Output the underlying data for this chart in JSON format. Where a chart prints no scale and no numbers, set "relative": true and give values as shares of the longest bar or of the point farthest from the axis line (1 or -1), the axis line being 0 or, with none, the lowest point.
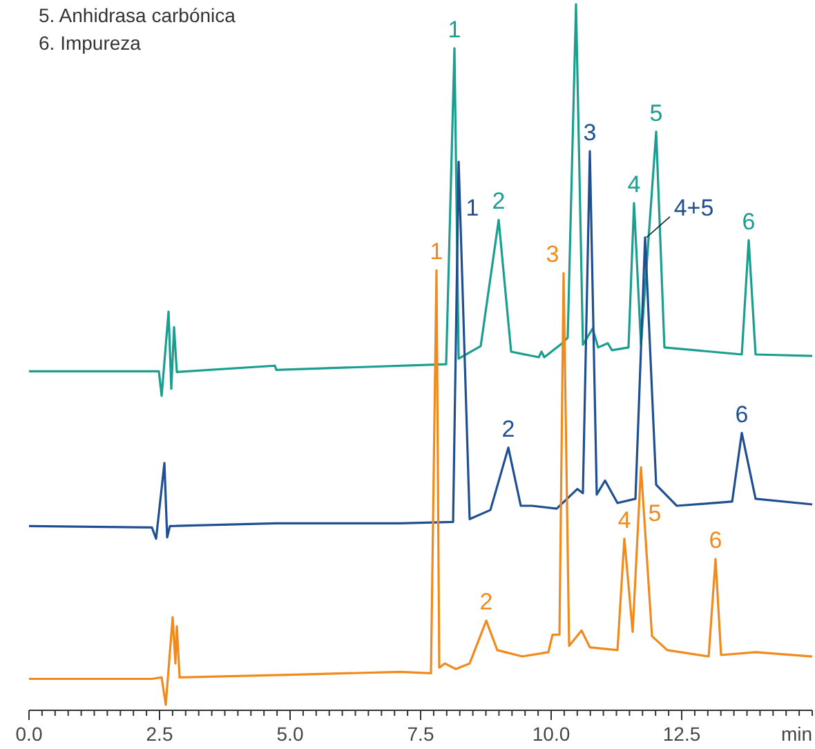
{
  "chart_data": {
    "type": "line",
    "relative": true,
    "xlabel": "min",
    "xlim": [
      0,
      15
    ],
    "grid": false,
    "legend": false,
    "tick_labels": "x",
    "marker": "none",
    "line_style": "solid",
    "xticks": [
      {
        "value": 0,
        "label": "0.0"
      },
      {
        "value": 0.25,
        "label": null
      },
      {
        "value": 0.5,
        "label": null
      },
      {
        "value": 0.75,
        "label": null
      },
      {
        "value": 1,
        "label": null
      },
      {
        "value": 1.25,
        "label": null
      },
      {
        "value": 1.5,
        "label": null
      },
      {
        "value": 1.75,
        "label": null
      },
      {
        "value": 2,
        "label": null
      },
      {
        "value": 2.25,
        "label": null
      },
      {
        "value": 2.5,
        "label": "2.5"
      },
      {
        "value": 2.75,
        "label": null
      },
      {
        "value": 3,
        "label": null
      },
      {
        "value": 3.25,
        "label": null
      },
      {
        "value": 3.5,
        "label": null
      },
      {
        "value": 3.75,
        "label": null
      },
      {
        "value": 4,
        "label": null
      },
      {
        "value": 4.25,
        "label": null
      },
      {
        "value": 4.5,
        "label": null
      },
      {
        "value": 4.75,
        "label": null
      },
      {
        "value": 5,
        "label": "5.0"
      },
      {
        "value": 5.25,
        "label": null
      },
      {
        "value": 5.5,
        "label": null
      },
      {
        "value": 5.75,
        "label": null
      },
      {
        "value": 6,
        "label": null
      },
      {
        "value": 6.25,
        "label": null
      },
      {
        "value": 6.5,
        "label": null
      },
      {
        "value": 6.75,
        "label": null
      },
      {
        "value": 7,
        "label": null
      },
      {
        "value": 7.25,
        "label": null
      },
      {
        "value": 7.5,
        "label": "7.5"
      },
      {
        "value": 7.75,
        "label": null
      },
      {
        "value": 8,
        "label": null
      },
      {
        "value": 8.25,
        "label": null
      },
      {
        "value": 8.5,
        "label": null
      },
      {
        "value": 8.75,
        "label": null
      },
      {
        "value": 9,
        "label": null
      },
      {
        "value": 9.25,
        "label": null
      },
      {
        "value": 9.5,
        "label": null
      },
      {
        "value": 9.75,
        "label": null
      },
      {
        "value": 10,
        "label": "10.0"
      },
      {
        "value": 10.25,
        "label": null
      },
      {
        "value": 10.5,
        "label": null
      },
      {
        "value": 10.75,
        "label": null
      },
      {
        "value": 11,
        "label": null
      },
      {
        "value": 11.25,
        "label": null
      },
      {
        "value": 11.5,
        "label": null
      },
      {
        "value": 11.75,
        "label": null
      },
      {
        "value": 12,
        "label": null
      },
      {
        "value": 12.25,
        "label": null
      },
      {
        "value": 12.5,
        "label": "12.5"
      },
      {
        "value": 12.75,
        "label": null
      },
      {
        "value": 13,
        "label": null
      },
      {
        "value": 13.25,
        "label": null
      },
      {
        "value": 13.5,
        "label": null
      },
      {
        "value": 13.75,
        "label": null
      },
      {
        "value": 14,
        "label": null
      },
      {
        "value": 14.25,
        "label": null
      },
      {
        "value": 14.5,
        "label": null
      },
      {
        "value": 14.75,
        "label": null
      },
      {
        "value": 15,
        "label": null
      }
    ],
    "series": [
      {
        "color": "#1a9e8f",
        "x": [
          0,
          2.487,
          2.54,
          2.672,
          2.725,
          2.778,
          2.831,
          4.709,
          4.735,
          7.989,
          8.148,
          8.228,
          8.651,
          8.995,
          9.233,
          9.762,
          9.815,
          9.868,
          10.212,
          10.317,
          10.476,
          10.608,
          10.794,
          10.899,
          11.085,
          11.164,
          11.481,
          11.587,
          11.72,
          12.011,
          12.169,
          13.651,
          13.783,
          13.915,
          15
        ],
        "values": [
          0.476,
          0.476,
          0.441,
          0.561,
          0.451,
          0.539,
          0.475,
          0.484,
          0.478,
          0.486,
          0.937,
          0.494,
          0.512,
          0.692,
          0.504,
          0.496,
          0.504,
          0.496,
          0.516,
          0.524,
          1,
          0.514,
          0.537,
          0.51,
          0.516,
          0.506,
          0.51,
          0.716,
          0.514,
          0.818,
          0.51,
          0.5,
          0.663,
          0.5,
          0.498
        ]
      },
      {
        "color": "#1f4e91",
        "x": [
          0,
          2.354,
          2.434,
          2.593,
          2.646,
          2.698,
          4.735,
          7.116,
          8.122,
          8.228,
          8.439,
          8.836,
          9.18,
          9.418,
          9.63,
          10.106,
          10.503,
          10.608,
          10.741,
          10.873,
          11.032,
          11.27,
          11.614,
          11.799,
          12.011,
          12.407,
          13.466,
          13.651,
          13.915,
          15
        ],
        "values": [
          0.255,
          0.253,
          0.237,
          0.345,
          0.239,
          0.255,
          0.259,
          0.259,
          0.261,
          0.775,
          0.265,
          0.278,
          0.367,
          0.284,
          0.284,
          0.28,
          0.308,
          0.302,
          0.79,
          0.3,
          0.32,
          0.288,
          0.294,
          0.667,
          0.314,
          0.284,
          0.29,
          0.388,
          0.294,
          0.286
        ]
      },
      {
        "color": "#f08a1c",
        "x": [
          0,
          2.354,
          2.54,
          2.619,
          2.751,
          2.804,
          2.831,
          2.884,
          5.106,
          7.116,
          7.698,
          7.804,
          7.857,
          7.963,
          8.175,
          8.439,
          8.757,
          8.968,
          9.444,
          9.947,
          10.026,
          10.159,
          10.238,
          10.344,
          10.582,
          10.741,
          11.27,
          11.402,
          11.561,
          11.72,
          11.931,
          12.222,
          13.016,
          13.148,
          13.254,
          13.915,
          15
        ],
        "values": [
          0.037,
          0.037,
          0.039,
          0,
          0.125,
          0.059,
          0.112,
          0.039,
          0.043,
          0.047,
          0.045,
          0.62,
          0.053,
          0.059,
          0.051,
          0.059,
          0.12,
          0.078,
          0.069,
          0.075,
          0.1,
          0.1,
          0.616,
          0.084,
          0.106,
          0.082,
          0.078,
          0.237,
          0.104,
          0.339,
          0.098,
          0.078,
          0.069,
          0.208,
          0.071,
          0.075,
          0.069
        ]
      }
    ],
    "annotations": [
      "5. Anhidrasa carbónica",
      "6. Impureza",
      {
        "text": "1",
        "x": 8.148,
        "y": 0.937
      },
      {
        "text": "1",
        "x": 8.228,
        "y": 0.775
      },
      {
        "text": "1",
        "x": 7.804,
        "y": 0.62
      },
      {
        "text": "2",
        "x": 8.995,
        "y": 0.692
      },
      {
        "text": "2",
        "x": 9.18,
        "y": 0.367
      },
      {
        "text": "2",
        "x": 8.757,
        "y": 0.12
      },
      {
        "text": "3",
        "x": 10.238,
        "y": 0.616
      },
      {
        "text": "3",
        "x": 10.741,
        "y": 0.79
      },
      {
        "text": "4",
        "x": 11.587,
        "y": 0.716
      },
      {
        "text": "4+5",
        "x": 11.799,
        "y": 0.667
      },
      {
        "text": "5",
        "x": 12.011,
        "y": 0.818
      },
      {
        "text": "4",
        "x": 11.402,
        "y": 0.237
      },
      {
        "text": "5",
        "x": 11.72,
        "y": 0.339
      },
      {
        "text": "6",
        "x": 13.783,
        "y": 0.663
      },
      {
        "text": "6",
        "x": 13.651,
        "y": 0.388
      },
      {
        "text": "6",
        "x": 13.148,
        "y": 0.208
      }
    ]
  }
}
